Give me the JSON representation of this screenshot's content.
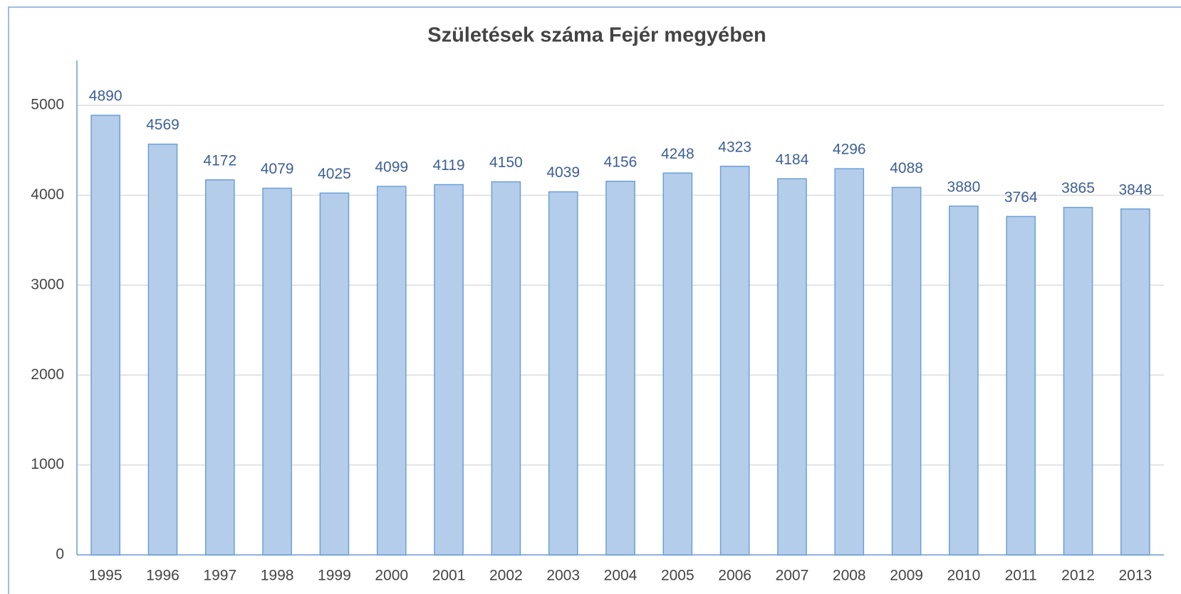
{
  "chart_data": {
    "type": "bar",
    "title": "Születések száma Fejér megyében",
    "categories": [
      "1995",
      "1996",
      "1997",
      "1998",
      "1999",
      "2000",
      "2001",
      "2002",
      "2003",
      "2004",
      "2005",
      "2006",
      "2007",
      "2008",
      "2009",
      "2010",
      "2011",
      "2012",
      "2013"
    ],
    "values": [
      4890,
      4569,
      4172,
      4079,
      4025,
      4099,
      4119,
      4150,
      4039,
      4156,
      4248,
      4323,
      4184,
      4296,
      4088,
      3880,
      3764,
      3865,
      3848
    ],
    "color": "#b3cdeb",
    "ylim": [
      0,
      5500
    ],
    "yticks": [
      0,
      1000,
      2000,
      3000,
      4000,
      5000
    ],
    "grid": true
  }
}
